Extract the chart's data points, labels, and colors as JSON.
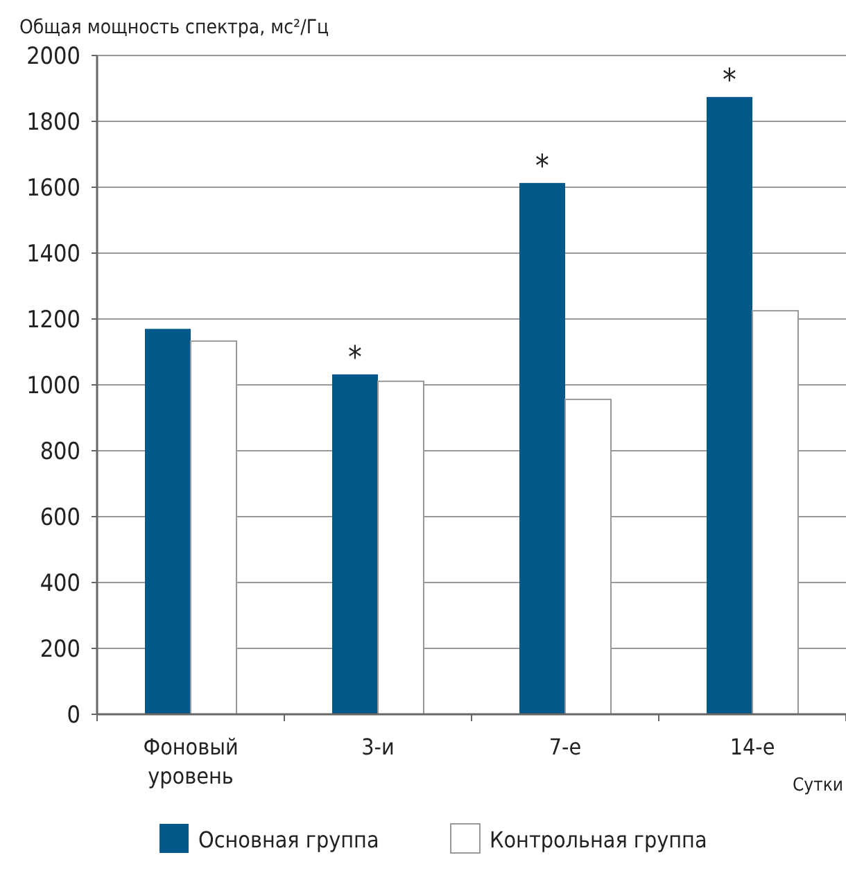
{
  "chart_data": {
    "type": "bar",
    "ylabel": "Общая мощность спектра, мс²/Гц",
    "xlabel": "Сутки",
    "categories": [
      "Фоновый уровень",
      "3-и",
      "7-е",
      "14-е"
    ],
    "series": [
      {
        "name": "Основная группа",
        "color": "#05598a",
        "values": [
          1170,
          1032,
          1613,
          1874
        ]
      },
      {
        "name": "Контрольная группа",
        "color": "#ffffff",
        "values": [
          1133,
          1011,
          956,
          1225
        ]
      }
    ],
    "ylim": [
      0,
      2000
    ],
    "yticks": [
      0,
      200,
      400,
      600,
      800,
      1000,
      1200,
      1400,
      1600,
      1800,
      2000
    ],
    "grid": "y",
    "legend": "bottom",
    "annotations": [
      {
        "text": "*",
        "x": "3-и",
        "y": 1032
      },
      {
        "text": "*",
        "x": "7-е",
        "y": 1613
      },
      {
        "text": "*",
        "x": "14-е",
        "y": 1874
      }
    ]
  }
}
